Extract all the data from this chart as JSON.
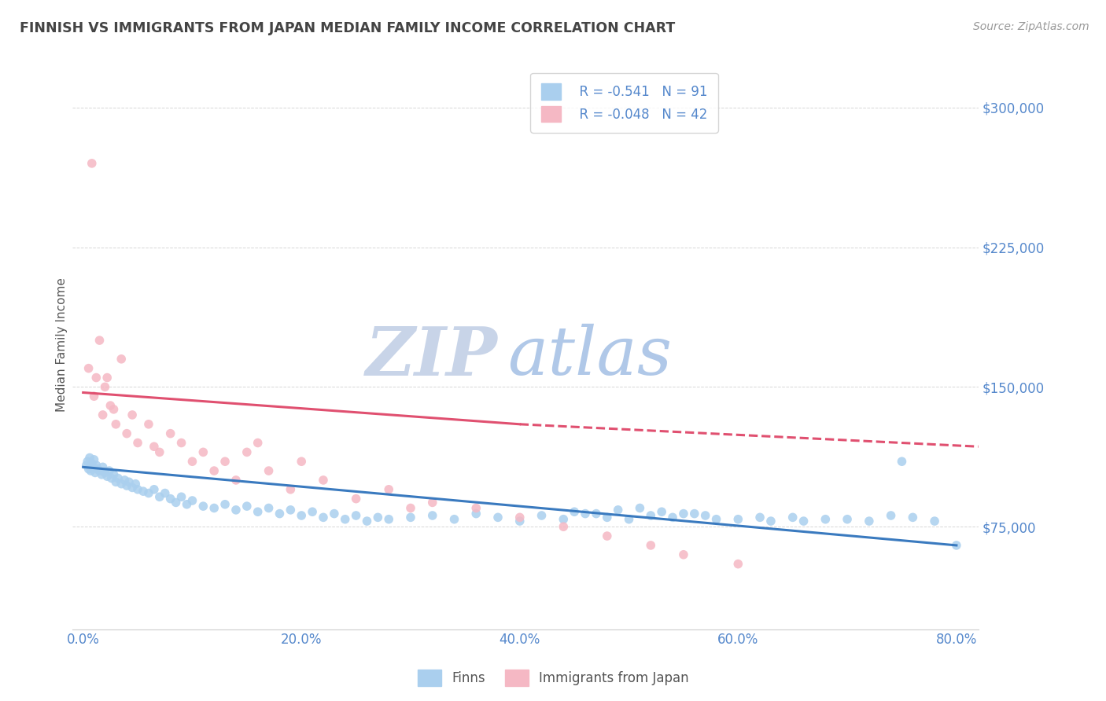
{
  "title": "FINNISH VS IMMIGRANTS FROM JAPAN MEDIAN FAMILY INCOME CORRELATION CHART",
  "source_text": "Source: ZipAtlas.com",
  "ylabel": "Median Family Income",
  "watermark_zip": "ZIP",
  "watermark_atlas": "atlas",
  "xlim": [
    -1.0,
    82.0
  ],
  "ylim": [
    20000,
    325000
  ],
  "yticks": [
    75000,
    150000,
    225000,
    300000
  ],
  "ytick_labels": [
    "$75,000",
    "$150,000",
    "$225,000",
    "$300,000"
  ],
  "xticks": [
    0.0,
    20.0,
    40.0,
    60.0,
    80.0
  ],
  "xtick_labels": [
    "0.0%",
    "20.0%",
    "40.0%",
    "60.0%",
    "80.0%"
  ],
  "legend_entries": [
    {
      "label": "Finns",
      "R": "-0.541",
      "N": "91",
      "color": "#aacfee"
    },
    {
      "label": "Immigrants from Japan",
      "R": "-0.048",
      "N": "42",
      "color": "#f5b8c4"
    }
  ],
  "finns_scatter_color": "#aacfee",
  "japan_scatter_color": "#f5b8c4",
  "trend_color_finns": "#3a7abf",
  "trend_color_japan": "#e05070",
  "tick_label_color": "#5588cc",
  "title_color": "#444444",
  "grid_color": "#bbbbbb",
  "background_color": "#ffffff",
  "watermark_color_zip": "#c8d4e8",
  "watermark_color_atlas": "#b0c8e8",
  "finns_trend_x0": 0,
  "finns_trend_y0": 107000,
  "finns_trend_x1": 80,
  "finns_trend_y1": 65000,
  "japan_trend_solid_x0": 0,
  "japan_trend_solid_y0": 147000,
  "japan_trend_solid_x1": 40,
  "japan_trend_solid_y1": 130000,
  "japan_trend_dash_x0": 40,
  "japan_trend_dash_y0": 130000,
  "japan_trend_dash_x1": 82,
  "japan_trend_dash_y1": 118000,
  "finns_x": [
    0.3,
    0.4,
    0.5,
    0.6,
    0.7,
    0.8,
    0.9,
    1.0,
    1.1,
    1.2,
    1.3,
    1.5,
    1.7,
    1.8,
    2.0,
    2.2,
    2.4,
    2.6,
    2.8,
    3.0,
    3.2,
    3.5,
    3.8,
    4.0,
    4.2,
    4.5,
    4.8,
    5.0,
    5.5,
    6.0,
    6.5,
    7.0,
    7.5,
    8.0,
    8.5,
    9.0,
    9.5,
    10.0,
    11.0,
    12.0,
    13.0,
    14.0,
    15.0,
    16.0,
    17.0,
    18.0,
    19.0,
    20.0,
    21.0,
    22.0,
    23.0,
    24.0,
    25.0,
    26.0,
    27.0,
    28.0,
    30.0,
    32.0,
    34.0,
    36.0,
    38.0,
    40.0,
    42.0,
    44.0,
    46.0,
    48.0,
    50.0,
    52.0,
    54.0,
    56.0,
    58.0,
    62.0,
    66.0,
    70.0,
    74.0,
    78.0,
    80.0,
    65.0,
    68.0,
    72.0,
    76.0,
    55.0,
    57.0,
    60.0,
    63.0,
    45.0,
    47.0,
    49.0,
    51.0,
    53.0,
    75.0
  ],
  "finns_y": [
    108000,
    110000,
    106000,
    112000,
    105000,
    109000,
    107000,
    111000,
    104000,
    108000,
    106000,
    105000,
    103000,
    107000,
    104000,
    102000,
    105000,
    101000,
    103000,
    99000,
    101000,
    98000,
    100000,
    97000,
    99000,
    96000,
    98000,
    95000,
    94000,
    93000,
    95000,
    91000,
    93000,
    90000,
    88000,
    91000,
    87000,
    89000,
    86000,
    85000,
    87000,
    84000,
    86000,
    83000,
    85000,
    82000,
    84000,
    81000,
    83000,
    80000,
    82000,
    79000,
    81000,
    78000,
    80000,
    79000,
    80000,
    81000,
    79000,
    82000,
    80000,
    78000,
    81000,
    79000,
    82000,
    80000,
    79000,
    81000,
    80000,
    82000,
    79000,
    80000,
    78000,
    79000,
    81000,
    78000,
    65000,
    80000,
    79000,
    78000,
    80000,
    82000,
    81000,
    79000,
    78000,
    83000,
    82000,
    84000,
    85000,
    83000,
    110000
  ],
  "japan_x": [
    0.5,
    0.8,
    1.0,
    1.2,
    1.5,
    1.8,
    2.0,
    2.5,
    3.0,
    3.5,
    4.0,
    5.0,
    6.0,
    7.0,
    8.0,
    9.0,
    10.0,
    11.0,
    12.0,
    13.0,
    14.0,
    15.0,
    17.0,
    19.0,
    22.0,
    25.0,
    28.0,
    32.0,
    36.0,
    40.0,
    44.0,
    48.0,
    52.0,
    2.2,
    2.8,
    4.5,
    6.5,
    16.0,
    20.0,
    30.0,
    55.0,
    60.0
  ],
  "japan_y": [
    160000,
    270000,
    145000,
    155000,
    175000,
    135000,
    150000,
    140000,
    130000,
    165000,
    125000,
    120000,
    130000,
    115000,
    125000,
    120000,
    110000,
    115000,
    105000,
    110000,
    100000,
    115000,
    105000,
    95000,
    100000,
    90000,
    95000,
    88000,
    85000,
    80000,
    75000,
    70000,
    65000,
    155000,
    138000,
    135000,
    118000,
    120000,
    110000,
    85000,
    60000,
    55000
  ]
}
